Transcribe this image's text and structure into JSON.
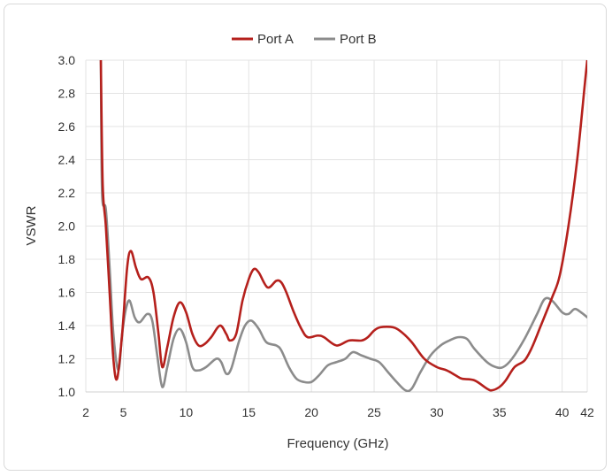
{
  "chart_data": {
    "type": "line",
    "xlabel": "Frequency (GHz)",
    "ylabel": "VSWR",
    "xlim": [
      2,
      42
    ],
    "ylim": [
      1.0,
      3.0
    ],
    "x_ticks": [
      2,
      5,
      10,
      15,
      20,
      25,
      30,
      35,
      40,
      42
    ],
    "y_ticks": [
      1.0,
      1.2,
      1.4,
      1.6,
      1.8,
      2.0,
      2.2,
      2.4,
      2.6,
      2.8,
      3.0
    ],
    "grid": true,
    "legend_position": "top-center",
    "series": [
      {
        "name": "Port A",
        "color": "#b5201c",
        "points": [
          [
            3.2,
            3.0
          ],
          [
            3.35,
            2.25
          ],
          [
            3.6,
            2.0
          ],
          [
            3.9,
            1.6
          ],
          [
            4.2,
            1.2
          ],
          [
            4.5,
            1.08
          ],
          [
            4.9,
            1.35
          ],
          [
            5.3,
            1.75
          ],
          [
            5.6,
            1.85
          ],
          [
            6.0,
            1.75
          ],
          [
            6.4,
            1.68
          ],
          [
            7.0,
            1.69
          ],
          [
            7.4,
            1.6
          ],
          [
            7.8,
            1.35
          ],
          [
            8.1,
            1.15
          ],
          [
            8.5,
            1.27
          ],
          [
            9.0,
            1.45
          ],
          [
            9.5,
            1.54
          ],
          [
            10.0,
            1.48
          ],
          [
            10.5,
            1.35
          ],
          [
            11.0,
            1.28
          ],
          [
            11.5,
            1.29
          ],
          [
            12.0,
            1.33
          ],
          [
            12.7,
            1.4
          ],
          [
            13.2,
            1.35
          ],
          [
            13.5,
            1.31
          ],
          [
            14.0,
            1.35
          ],
          [
            14.5,
            1.55
          ],
          [
            15.0,
            1.68
          ],
          [
            15.4,
            1.74
          ],
          [
            15.8,
            1.72
          ],
          [
            16.5,
            1.63
          ],
          [
            17.2,
            1.67
          ],
          [
            17.6,
            1.66
          ],
          [
            18.0,
            1.6
          ],
          [
            18.6,
            1.48
          ],
          [
            19.2,
            1.38
          ],
          [
            19.7,
            1.33
          ],
          [
            20.5,
            1.34
          ],
          [
            21.0,
            1.33
          ],
          [
            22.0,
            1.28
          ],
          [
            23.0,
            1.31
          ],
          [
            24.0,
            1.31
          ],
          [
            24.5,
            1.33
          ],
          [
            25.0,
            1.37
          ],
          [
            25.5,
            1.39
          ],
          [
            26.5,
            1.39
          ],
          [
            27.2,
            1.36
          ],
          [
            28.0,
            1.3
          ],
          [
            29.0,
            1.2
          ],
          [
            30.0,
            1.15
          ],
          [
            30.8,
            1.13
          ],
          [
            31.5,
            1.1
          ],
          [
            32.0,
            1.08
          ],
          [
            33.0,
            1.07
          ],
          [
            34.0,
            1.02
          ],
          [
            34.4,
            1.01
          ],
          [
            35.0,
            1.03
          ],
          [
            35.5,
            1.07
          ],
          [
            36.2,
            1.15
          ],
          [
            37.0,
            1.19
          ],
          [
            37.6,
            1.27
          ],
          [
            38.3,
            1.4
          ],
          [
            39.2,
            1.57
          ],
          [
            39.8,
            1.7
          ],
          [
            40.5,
            2.0
          ],
          [
            41.2,
            2.4
          ],
          [
            41.8,
            2.85
          ],
          [
            42.0,
            3.0
          ]
        ]
      },
      {
        "name": "Port B",
        "color": "#8c8c8c",
        "points": [
          [
            3.2,
            3.0
          ],
          [
            3.3,
            2.2
          ],
          [
            3.6,
            2.1
          ],
          [
            3.9,
            1.75
          ],
          [
            4.2,
            1.35
          ],
          [
            4.6,
            1.13
          ],
          [
            4.9,
            1.35
          ],
          [
            5.2,
            1.5
          ],
          [
            5.5,
            1.55
          ],
          [
            5.9,
            1.45
          ],
          [
            6.3,
            1.42
          ],
          [
            6.9,
            1.47
          ],
          [
            7.3,
            1.43
          ],
          [
            7.7,
            1.22
          ],
          [
            8.1,
            1.03
          ],
          [
            8.5,
            1.15
          ],
          [
            9.0,
            1.32
          ],
          [
            9.5,
            1.38
          ],
          [
            10.0,
            1.3
          ],
          [
            10.5,
            1.15
          ],
          [
            11.0,
            1.13
          ],
          [
            11.6,
            1.15
          ],
          [
            12.4,
            1.2
          ],
          [
            12.8,
            1.18
          ],
          [
            13.2,
            1.11
          ],
          [
            13.6,
            1.14
          ],
          [
            14.2,
            1.3
          ],
          [
            14.7,
            1.4
          ],
          [
            15.2,
            1.43
          ],
          [
            15.8,
            1.38
          ],
          [
            16.4,
            1.3
          ],
          [
            17.2,
            1.28
          ],
          [
            17.6,
            1.25
          ],
          [
            18.2,
            1.15
          ],
          [
            18.8,
            1.08
          ],
          [
            19.4,
            1.06
          ],
          [
            20.0,
            1.06
          ],
          [
            20.6,
            1.1
          ],
          [
            21.3,
            1.16
          ],
          [
            22.0,
            1.18
          ],
          [
            22.7,
            1.2
          ],
          [
            23.3,
            1.24
          ],
          [
            24.0,
            1.22
          ],
          [
            24.7,
            1.2
          ],
          [
            25.4,
            1.18
          ],
          [
            26.1,
            1.12
          ],
          [
            26.8,
            1.06
          ],
          [
            27.5,
            1.01
          ],
          [
            28.0,
            1.02
          ],
          [
            28.7,
            1.12
          ],
          [
            29.5,
            1.22
          ],
          [
            30.3,
            1.28
          ],
          [
            31.0,
            1.31
          ],
          [
            31.7,
            1.33
          ],
          [
            32.4,
            1.32
          ],
          [
            33.0,
            1.26
          ],
          [
            34.0,
            1.18
          ],
          [
            34.7,
            1.15
          ],
          [
            35.3,
            1.15
          ],
          [
            36.0,
            1.2
          ],
          [
            37.0,
            1.32
          ],
          [
            38.0,
            1.47
          ],
          [
            38.6,
            1.56
          ],
          [
            39.2,
            1.55
          ],
          [
            40.0,
            1.48
          ],
          [
            40.5,
            1.47
          ],
          [
            41.0,
            1.5
          ],
          [
            41.5,
            1.48
          ],
          [
            42.0,
            1.45
          ]
        ]
      }
    ]
  }
}
